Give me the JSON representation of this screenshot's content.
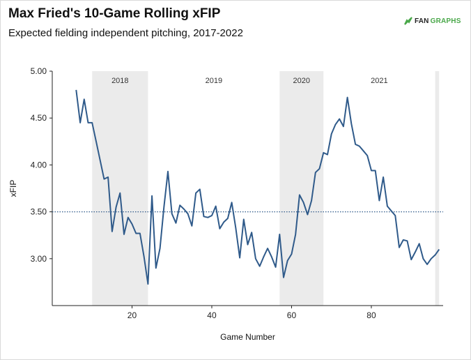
{
  "header": {
    "title": "Max Fried's 10-Game Rolling xFIP",
    "subtitle": "Expected fielding independent pitching, 2017-2022",
    "logo_text_1": "FAN",
    "logo_text_2": "GRAPHS"
  },
  "chart_data": {
    "type": "line",
    "title": "Max Fried's 10-Game Rolling xFIP",
    "subtitle": "Expected fielding independent pitching, 2017-2022",
    "xlabel": "Game Number",
    "ylabel": "xFIP",
    "xlim": [
      0,
      98
    ],
    "ylim": [
      2.5,
      5.0
    ],
    "x_ticks": [
      20,
      40,
      60,
      80
    ],
    "y_ticks": [
      "3.00",
      "3.50",
      "4.00",
      "4.50",
      "5.00"
    ],
    "reference_line": {
      "y": 3.5,
      "style": "dotted"
    },
    "shaded_periods": [
      {
        "label": "2018",
        "x_start": 10,
        "x_end": 24,
        "shaded": true
      },
      {
        "label": "2019",
        "x_start": 24,
        "x_end": 57,
        "shaded": false
      },
      {
        "label": "2020",
        "x_start": 57,
        "x_end": 68,
        "shaded": true
      },
      {
        "label": "2021",
        "x_start": 68,
        "x_end": 96,
        "shaded": false
      },
      {
        "label": "",
        "x_start": 96,
        "x_end": 97,
        "shaded": true
      }
    ],
    "series": [
      {
        "color": "#2f5a8a",
        "x": [
          6,
          7,
          8,
          9,
          10,
          11,
          12,
          13,
          14,
          15,
          16,
          17,
          18,
          19,
          20,
          21,
          22,
          23,
          24,
          25,
          26,
          27,
          28,
          29,
          30,
          31,
          32,
          33,
          34,
          35,
          36,
          37,
          38,
          39,
          40,
          41,
          42,
          43,
          44,
          45,
          46,
          47,
          48,
          49,
          50,
          51,
          52,
          53,
          54,
          55,
          56,
          57,
          58,
          59,
          60,
          61,
          62,
          63,
          64,
          65,
          66,
          67,
          68,
          69,
          70,
          71,
          72,
          73,
          74,
          75,
          76,
          77,
          78,
          79,
          80,
          81,
          82,
          83,
          84,
          85,
          86,
          87,
          88,
          89,
          90,
          91,
          92,
          93,
          94,
          95,
          96,
          97
        ],
        "y": [
          4.8,
          4.45,
          4.7,
          4.45,
          4.45,
          4.25,
          4.05,
          3.85,
          3.87,
          3.29,
          3.55,
          3.7,
          3.26,
          3.44,
          3.37,
          3.27,
          3.27,
          3.02,
          2.73,
          3.67,
          2.9,
          3.11,
          3.55,
          3.93,
          3.48,
          3.38,
          3.57,
          3.53,
          3.48,
          3.35,
          3.7,
          3.74,
          3.45,
          3.44,
          3.46,
          3.56,
          3.32,
          3.39,
          3.43,
          3.6,
          3.33,
          3.01,
          3.42,
          3.15,
          3.28,
          3.0,
          2.92,
          3.02,
          3.11,
          3.02,
          2.91,
          3.26,
          2.8,
          2.98,
          3.05,
          3.26,
          3.68,
          3.6,
          3.47,
          3.62,
          3.92,
          3.96,
          4.13,
          4.11,
          4.33,
          4.43,
          4.49,
          4.41,
          4.72,
          4.44,
          4.22,
          4.2,
          4.15,
          4.1,
          3.94,
          3.94,
          3.62,
          3.87,
          3.56,
          3.51,
          3.46,
          3.12,
          3.2,
          3.19,
          2.99,
          3.07,
          3.16,
          3.0,
          2.94,
          3.0,
          3.04,
          3.1
        ]
      }
    ]
  }
}
